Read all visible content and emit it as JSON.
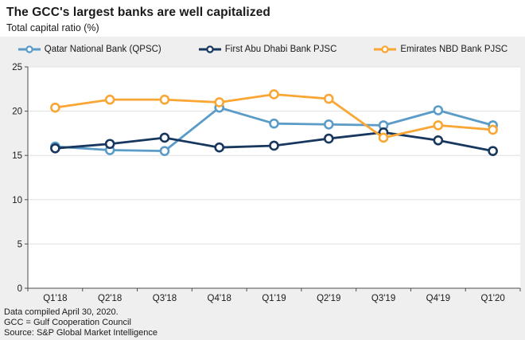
{
  "header": {
    "title": "The GCC's largest banks are well capitalized",
    "subtitle": "Total capital ratio (%)"
  },
  "footer": {
    "line1": "Data compiled April 30, 2020.",
    "line2": "GCC = Gulf Cooperation Council",
    "line3": "Source: S&P Global Market Intelligence"
  },
  "colors": {
    "panel_bg": "#efefef",
    "plot_bg": "#ffffff",
    "gridline": "#e0e0e0",
    "axis": "#4d4d4d",
    "text": "#1a1a1a",
    "qnb_blue": "#5b9bc8",
    "fab_navy": "#17375e",
    "enbd_orange": "#faa634"
  },
  "chart_data": {
    "type": "line",
    "title": "The GCC's largest banks are well capitalized",
    "subtitle": "Total capital ratio (%)",
    "categories": [
      "Q1'18",
      "Q2'18",
      "Q3'18",
      "Q4'18",
      "Q1'19",
      "Q2'19",
      "Q3'19",
      "Q4'19",
      "Q1'20"
    ],
    "series": [
      {
        "name": "Qatar National Bank (QPSC)",
        "color": "#5b9bc8",
        "values": [
          16.0,
          15.6,
          15.5,
          20.4,
          18.6,
          18.5,
          18.4,
          20.1,
          18.4
        ]
      },
      {
        "name": "First Abu Dhabi Bank PJSC",
        "color": "#17375e",
        "values": [
          15.8,
          16.3,
          17.0,
          15.9,
          16.1,
          16.9,
          17.6,
          16.7,
          15.5
        ]
      },
      {
        "name": "Emirates NBD Bank PJSC",
        "color": "#faa634",
        "values": [
          20.4,
          21.3,
          21.3,
          21.0,
          21.9,
          21.4,
          17.0,
          18.4,
          17.9
        ]
      }
    ],
    "xlabel": "",
    "ylabel": "Total capital ratio (%)",
    "ylim": [
      0,
      25
    ],
    "ytick_step": 5,
    "grid": "horizontal",
    "legend_position": "top",
    "marker": "open-circle"
  }
}
